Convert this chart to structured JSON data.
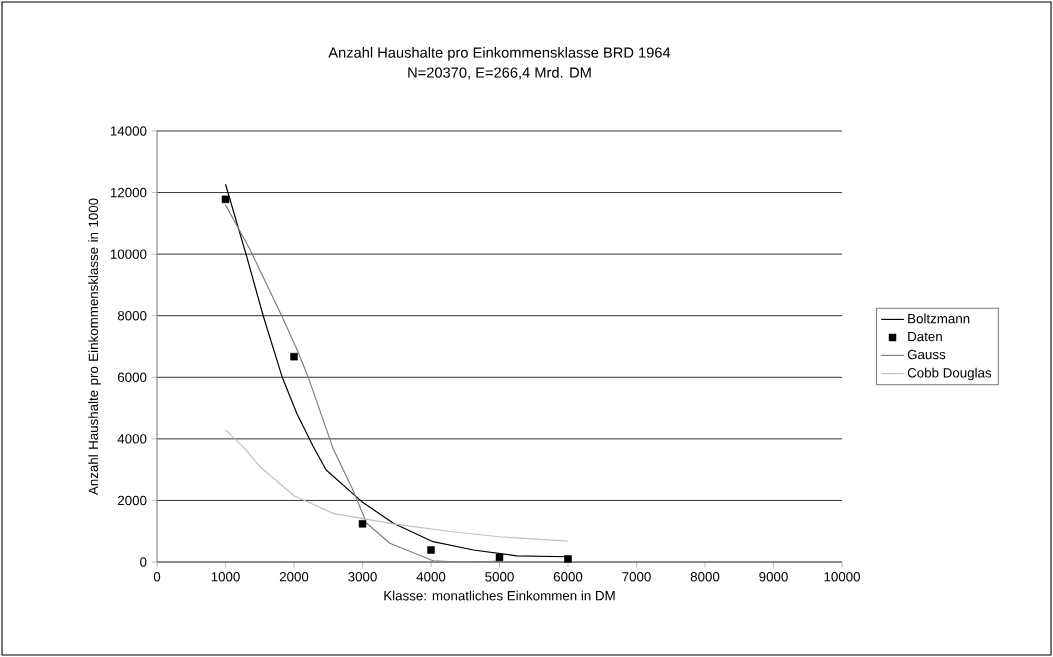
{
  "chart_data": {
    "type": "line",
    "title": "Anzahl Haushalte pro Einkommensklasse BRD 1964",
    "subtitle": "N=20370, E=266,4 Mrd. DM",
    "xlabel": "Klasse: monatliches Einkommen in DM",
    "ylabel": "Anzahl Haushalte pro Einkommensklasse in 1000",
    "xlim": [
      0,
      10000
    ],
    "xticks": [
      0,
      1000,
      2000,
      3000,
      4000,
      5000,
      6000,
      7000,
      8000,
      9000,
      10000
    ],
    "ylim": [
      0,
      14000
    ],
    "yticks": [
      0,
      2000,
      4000,
      6000,
      8000,
      10000,
      12000,
      14000
    ],
    "grid": "y",
    "legend": "right",
    "series": [
      {
        "name": "Boltzmann",
        "marker": "none",
        "color": "#000000",
        "x": [
          1000,
          1310,
          1550,
          1830,
          2040,
          2280,
          2470,
          2990,
          3450,
          4030,
          4620,
          5250,
          6000
        ],
        "values": [
          12270,
          9920,
          8000,
          5990,
          4830,
          3750,
          2990,
          1960,
          1260,
          660,
          390,
          200,
          170
        ]
      },
      {
        "name": "Daten",
        "type": "scatter",
        "marker": "square",
        "color": "#000000",
        "x": [
          1000,
          2000,
          3000,
          4000,
          5000,
          6000
        ],
        "values": [
          11780,
          6670,
          1240,
          390,
          150,
          100
        ]
      },
      {
        "name": "Gauss",
        "marker": "none",
        "color": "#808080",
        "x": [
          1000,
          1360,
          1820,
          2040,
          2210,
          2570,
          2860,
          3060,
          3400,
          4030,
          4420,
          4810,
          5000
        ],
        "values": [
          11600,
          10140,
          8000,
          6920,
          5990,
          3690,
          2340,
          1260,
          610,
          40,
          0,
          10,
          30
        ]
      },
      {
        "name": "Cobb Douglas",
        "marker": "none",
        "color": "#c0c0c0",
        "x": [
          1000,
          1280,
          1500,
          2000,
          2570,
          3450,
          4280,
          5000,
          6000
        ],
        "values": [
          4290,
          3690,
          3100,
          2150,
          1580,
          1240,
          990,
          820,
          680
        ]
      }
    ]
  }
}
